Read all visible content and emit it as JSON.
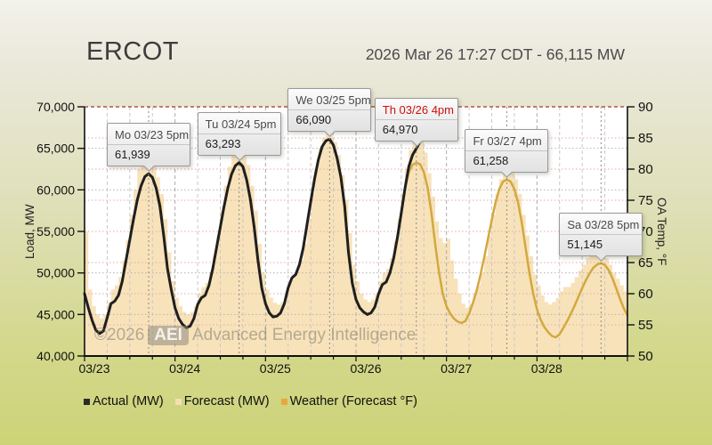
{
  "header": {
    "title": "ERCOT",
    "timestamp": "2026 Mar 26 17:27 CDT - 66,115 MW"
  },
  "watermark": {
    "copyright": "©2026",
    "badge": "AEI",
    "name": "Advanced Energy Intelligence"
  },
  "legend": {
    "items": [
      {
        "label": "Actual (MW)",
        "color": "#2b2b2b"
      },
      {
        "label": "Forecast (MW)",
        "color": "#f5dfb2"
      },
      {
        "label": "Weather (Forecast °F)",
        "color": "#e9a83d"
      }
    ]
  },
  "colors": {
    "background_top": "#f3f2ea",
    "background_bottom": "#ccd377",
    "plot_background": "#ffffff",
    "actual_line": "#1f1f1f",
    "forecast_fill": "#f8e2ba",
    "weather_line": "#d2a93f",
    "annotation_alert": "#cc1111",
    "top_border_dashed": "#a23535"
  },
  "chart_data": {
    "type": "line",
    "title": "ERCOT actual load, forecast load and forecast weather",
    "hours_total": 144,
    "x_ticks": [
      "03/23",
      "03/24",
      "03/25",
      "03/26",
      "03/27",
      "03/28"
    ],
    "y_left": {
      "label": "Load, MW",
      "min": 40000,
      "max": 70000,
      "ticks": [
        70000,
        65000,
        60000,
        55000,
        50000,
        45000,
        40000
      ],
      "tick_labels": [
        "70,000",
        "65,000",
        "60,000",
        "55,000",
        "50,000",
        "45,000",
        "40,000"
      ]
    },
    "y_right": {
      "label": "OA Temp, °F",
      "min": 50,
      "max": 90,
      "ticks": [
        90,
        85,
        80,
        75,
        70,
        65,
        60,
        55,
        50
      ],
      "tick_labels": [
        "90",
        "85",
        "80",
        "75",
        "70",
        "65",
        "60",
        "55",
        "50"
      ]
    },
    "grid": {
      "h6_color": "#c8c8c8",
      "day_color": "#aaaaaa",
      "load_grid": "#b2b2b2",
      "temp_grid": "#e8a8a8",
      "top_line": "#a23535",
      "leader": "#8a8a8a",
      "axis": "#111111"
    },
    "series": [
      {
        "name": "Actual (MW)",
        "axis": "left",
        "draw": "line",
        "color": "#1f1f1f",
        "width": 3,
        "values": [
          47500,
          45800,
          44300,
          43100,
          42700,
          43000,
          44600,
          46300,
          46600,
          47300,
          49000,
          51500,
          54000,
          56500,
          58800,
          60500,
          61600,
          61939,
          61500,
          60200,
          58000,
          54500,
          50500,
          48000,
          45800,
          44500,
          43800,
          43400,
          43600,
          44500,
          46200,
          47000,
          47300,
          48500,
          50500,
          53000,
          55500,
          58000,
          60200,
          61900,
          62900,
          63293,
          62800,
          61200,
          58800,
          55500,
          51500,
          48200,
          46300,
          45200,
          44700,
          44800,
          45200,
          46300,
          48200,
          49400,
          49800,
          51000,
          53000,
          55800,
          58600,
          61300,
          63600,
          65200,
          65900,
          66090,
          65400,
          63800,
          61500,
          58000,
          52500,
          48800,
          46800,
          45800,
          45300,
          45000,
          45200,
          45900,
          47500,
          48600,
          48900,
          50000,
          51800,
          54300,
          57200,
          60200,
          62800,
          64200,
          64970,
          65800
        ],
        "end_point": {
          "hour": 89.45,
          "value": 66115
        }
      },
      {
        "name": "Forecast (MW)",
        "axis": "left",
        "draw": "area-step",
        "color": "#f8e2ba",
        "width": 0,
        "values": [
          55000,
          48000,
          46000,
          45000,
          44500,
          45000,
          46500,
          48000,
          48500,
          49500,
          51500,
          54000,
          57000,
          60000,
          62500,
          63500,
          63900,
          63800,
          62800,
          61500,
          59500,
          56500,
          52500,
          49000,
          47000,
          46000,
          45300,
          45000,
          45300,
          46000,
          47500,
          48300,
          48800,
          50000,
          52000,
          54500,
          57500,
          60500,
          62800,
          64300,
          65000,
          65200,
          64500,
          63000,
          60500,
          57500,
          53500,
          50000,
          48000,
          47000,
          46400,
          46200,
          46500,
          47200,
          48800,
          49800,
          50300,
          51500,
          53500,
          56500,
          59500,
          62500,
          65000,
          66300,
          66800,
          66700,
          65800,
          64200,
          61800,
          58800,
          54800,
          51000,
          49000,
          47500,
          46800,
          46500,
          46800,
          47500,
          49000,
          50000,
          50500,
          51800,
          53800,
          56500,
          59500,
          62500,
          64800,
          66000,
          66300,
          66100,
          64500,
          62000,
          59200,
          56200,
          54200,
          53600,
          54100,
          51500,
          49300,
          47500,
          46300,
          45800,
          46300,
          47500,
          48500,
          50000,
          52000,
          54500,
          57000,
          59500,
          61300,
          62300,
          62600,
          62300,
          61300,
          59500,
          57000,
          54500,
          52000,
          49800,
          48500,
          47300,
          46500,
          46200,
          46500,
          47000,
          47800,
          48300,
          48300,
          48800,
          49500,
          50300,
          51000,
          51800,
          52300,
          52500,
          52500,
          52300,
          51800,
          51000,
          50000,
          49300,
          48500,
          47800,
          47300
        ]
      },
      {
        "name": "Weather (Forecast °F)",
        "axis": "right",
        "draw": "line",
        "color": "#d2a93f",
        "width": 2.5,
        "values": [
          60,
          57.7,
          55.7,
          54.1,
          53.6,
          54,
          56.1,
          58.4,
          58.8,
          59.7,
          62,
          65.3,
          68.7,
          72,
          75.1,
          77.3,
          78.8,
          79.3,
          78.7,
          77.1,
          74.5,
          69.3,
          64,
          60.7,
          57.7,
          56,
          55.1,
          54.5,
          54.8,
          56,
          58.3,
          59.3,
          59.7,
          61.3,
          64,
          67.3,
          70.7,
          74,
          76.9,
          79.2,
          80.5,
          81.1,
          80.4,
          78.3,
          75.1,
          70.7,
          65.3,
          60.9,
          58.4,
          56.9,
          56.3,
          56.4,
          56.9,
          58.4,
          60.9,
          62.5,
          63.1,
          64.7,
          67.3,
          71.1,
          74.8,
          78.4,
          81.5,
          83.6,
          84.5,
          84.8,
          83.9,
          81.7,
          78.7,
          74,
          66.7,
          61.7,
          59.1,
          57.7,
          57.1,
          56.7,
          56.9,
          57.9,
          60,
          61.5,
          61.9,
          63.3,
          65.7,
          69.1,
          72.9,
          76.9,
          79.5,
          80.7,
          81,
          80.8,
          79.5,
          77,
          73,
          68,
          63.5,
          60,
          58,
          56.8,
          56,
          55.5,
          55.3,
          55.6,
          56.8,
          58.5,
          60.5,
          63,
          65.8,
          68.8,
          71.8,
          74.6,
          76.8,
          78,
          78.3,
          78,
          76.8,
          74.6,
          71.3,
          67.3,
          63.3,
          60,
          57.5,
          55.8,
          54.6,
          53.8,
          53.2,
          53,
          53.5,
          54.5,
          55.6,
          56.8,
          58.1,
          59.5,
          60.9,
          62.2,
          63.3,
          64.2,
          64.7,
          64.9,
          64.6,
          63.8,
          62.5,
          60.9,
          59.2,
          57.7,
          56.5
        ]
      }
    ],
    "annotations": [
      {
        "label": "Mo 03/23 5pm",
        "value": "61,939",
        "hour": 17,
        "mw": 61939,
        "label_color": "#4a4a4a"
      },
      {
        "label": "Tu 03/24 5pm",
        "value": "63,293",
        "hour": 41,
        "mw": 63293,
        "label_color": "#4a4a4a"
      },
      {
        "label": "We 03/25 5pm",
        "value": "66,090",
        "hour": 65,
        "mw": 66090,
        "label_color": "#4a4a4a"
      },
      {
        "label": "Th 03/26 4pm",
        "value": "64,970",
        "hour": 88,
        "mw": 64970,
        "label_color": "#cc1111"
      },
      {
        "label": "Fr 03/27 4pm",
        "value": "61,258",
        "hour": 112,
        "mw": 61258,
        "label_color": "#4a4a4a"
      },
      {
        "label": "Sa 03/28 5pm",
        "value": "51,145",
        "hour": 137,
        "mw": 51145,
        "label_color": "#4a4a4a"
      }
    ]
  }
}
